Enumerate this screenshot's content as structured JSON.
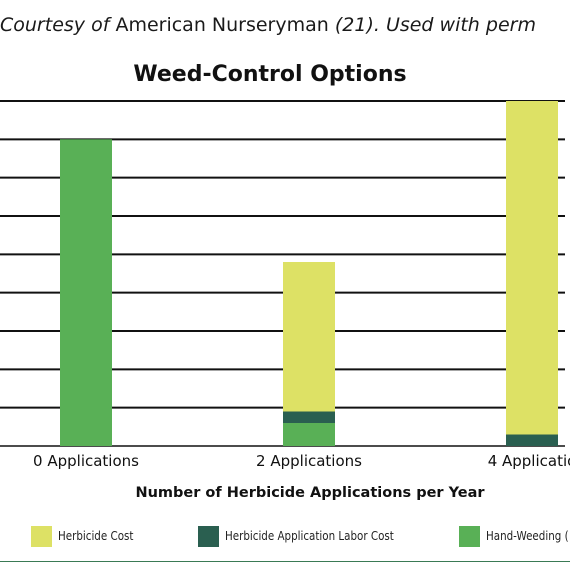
{
  "credit": {
    "prefix": "Courtesy ",
    "of": "of",
    "name": " American Nurseryman ",
    "ref": "(21). Used with perm"
  },
  "colors": {
    "herbicide_cost": "#dde165",
    "labor_cost": "#2a5f50",
    "hand_weeding": "#59b056",
    "grid": "#111111"
  },
  "chart_data": {
    "type": "bar",
    "stacked": true,
    "title": "Weed-Control Options",
    "xlabel": "Number of Herbicide Applications per Year",
    "ylabel": "",
    "categories": [
      "0 Applications",
      "2 Applications",
      "4 Applicatio"
    ],
    "series": [
      {
        "name": "Herbicide Cost",
        "values": [
          0,
          3.9,
          8.7
        ]
      },
      {
        "name": "Herbicide Application Labor Cost",
        "values": [
          0,
          0.3,
          0.3
        ]
      },
      {
        "name": "Hand-Weeding (",
        "values": [
          8,
          0.6,
          0
        ]
      }
    ],
    "ylim": [
      0,
      9
    ],
    "grid": true,
    "legend": "bottom"
  }
}
